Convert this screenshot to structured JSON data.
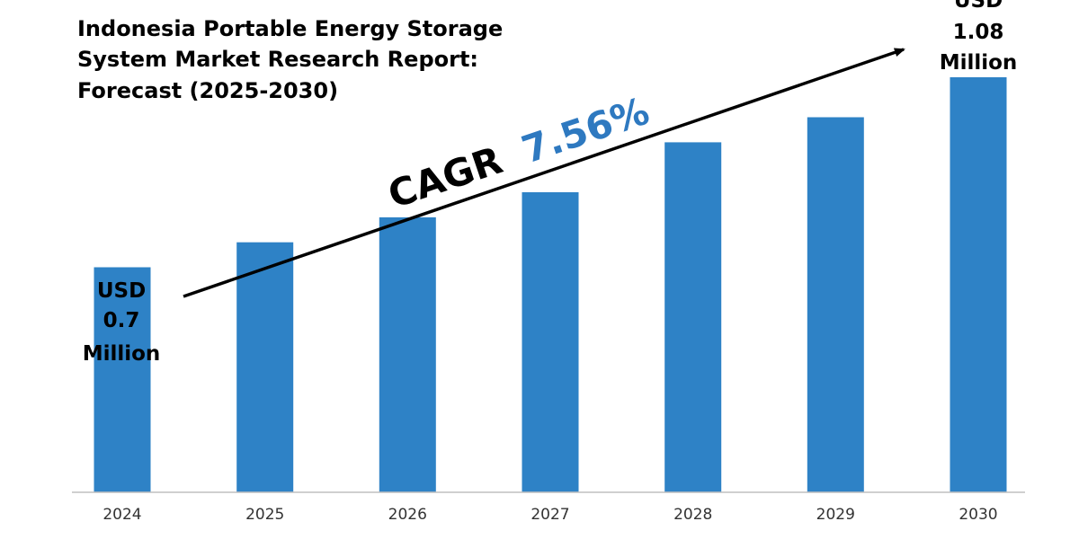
{
  "chart_data": {
    "type": "bar",
    "title_lines": [
      "Indonesia Portable Energy Storage",
      "System Market Research Report:",
      "Forecast (2025-2030)"
    ],
    "categories": [
      "2024",
      "2025",
      "2026",
      "2027",
      "2028",
      "2029",
      "2030"
    ],
    "values": [
      0.7,
      0.75,
      0.8,
      0.85,
      0.95,
      1.0,
      1.08
    ],
    "ylim": [
      0.25,
      1.15
    ],
    "xlabel": "",
    "ylabel": "",
    "grid": false,
    "legend": "none",
    "unit": "USD Million",
    "annotations": {
      "start_label": [
        "USD",
        "0.7",
        "Million"
      ],
      "end_label": [
        "USD",
        "1.08",
        "Million"
      ],
      "cagr_label": "CAGR",
      "cagr_value": "7.56%"
    },
    "colors": {
      "bar": "#2e82c6",
      "cagr_value": "#2e79c0",
      "text": "#000000",
      "axis": "#bfbfbf"
    }
  }
}
